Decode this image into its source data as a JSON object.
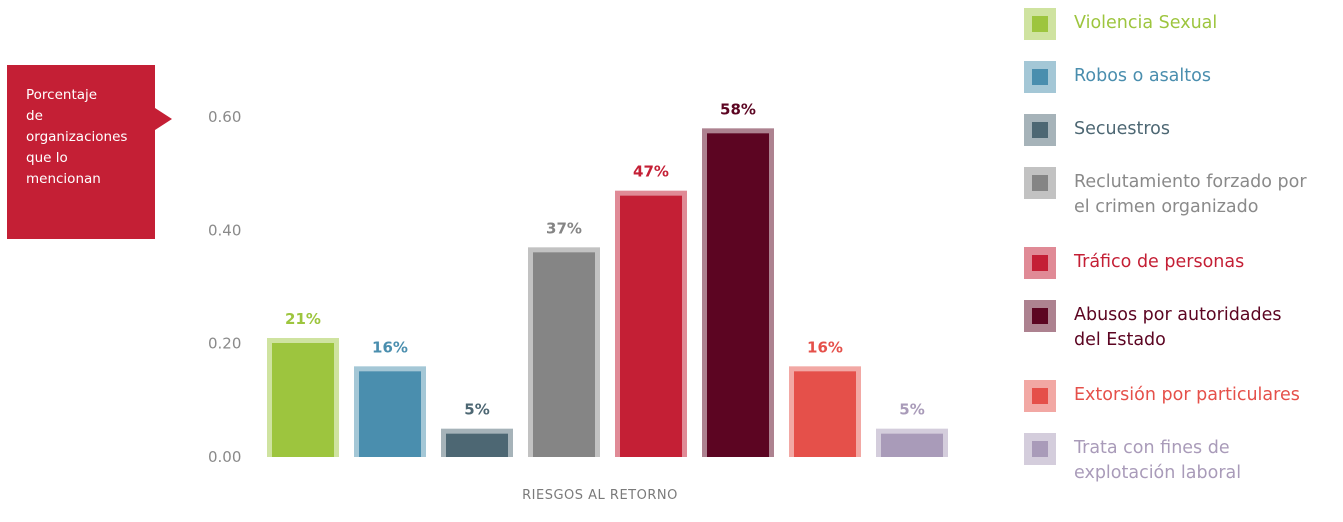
{
  "ylabel_lines": [
    "Porcentaje",
    "de",
    "organizaciones",
    "que lo",
    "mencionan"
  ],
  "chart_data": {
    "type": "bar",
    "xlabel": "RIESGOS AL RETORNO",
    "ylim": [
      0,
      0.6
    ],
    "yticks": [
      "0.60",
      "0.40",
      "0.20",
      "0.00"
    ],
    "categories": [
      "Violencia Sexual",
      "Robos o asaltos",
      "Secuestros",
      "Reclutamiento forzado por el crimen organizado",
      "Tráfico de personas",
      "Abusos por autoridades del Estado",
      "Extorsión por particulares",
      "Trata con fines de explotación laboral"
    ],
    "values": [
      0.21,
      0.16,
      0.05,
      0.37,
      0.47,
      0.58,
      0.16,
      0.05
    ],
    "data_labels": [
      "21%",
      "16%",
      "5%",
      "37%",
      "47%",
      "58%",
      "16%",
      "5%"
    ],
    "colors": [
      "#9dc53e",
      "#4a8eae",
      "#4d6773",
      "#858585",
      "#c41f35",
      "#5c0522",
      "#e5504a",
      "#a99bb9"
    ],
    "outline_colors": [
      "#cfe3a0",
      "#a4c7d6",
      "#a6b3b9",
      "#c2c2c2",
      "#e08a96",
      "#ad8290",
      "#f2a8a4",
      "#d4cddc"
    ],
    "label_colors": [
      "#9dc53e",
      "#4a8eae",
      "#4d6773",
      "#858585",
      "#c41f35",
      "#5c0522",
      "#e5504a",
      "#a99bb9"
    ],
    "legend": "right",
    "grid": false
  },
  "legend": [
    {
      "lines": [
        "Violencia Sexual"
      ],
      "color": "#9dc53e",
      "outline": "#cfe3a0",
      "text_color": "#9dc53e"
    },
    {
      "lines": [
        "Robos o asaltos"
      ],
      "color": "#4a8eae",
      "outline": "#a4c7d6",
      "text_color": "#4a8eae"
    },
    {
      "lines": [
        "Secuestros"
      ],
      "color": "#4d6773",
      "outline": "#a6b3b9",
      "text_color": "#4d6773"
    },
    {
      "lines": [
        "Reclutamiento forzado por",
        "el crimen organizado"
      ],
      "color": "#858585",
      "outline": "#c2c2c2",
      "text_color": "#8a8a8a"
    },
    {
      "lines": [
        "Tráfico de personas"
      ],
      "color": "#c41f35",
      "outline": "#e08a96",
      "text_color": "#c41f35"
    },
    {
      "lines": [
        "Abusos por autoridades",
        "del Estado"
      ],
      "color": "#5c0522",
      "outline": "#ad8290",
      "text_color": "#5c0522"
    },
    {
      "lines": [
        "Extorsión por particulares"
      ],
      "color": "#e5504a",
      "outline": "#f2a8a4",
      "text_color": "#e5504a"
    },
    {
      "lines": [
        "Trata con fines de",
        "explotación laboral"
      ],
      "color": "#a99bb9",
      "outline": "#d4cddc",
      "text_color": "#a99bb9"
    }
  ]
}
